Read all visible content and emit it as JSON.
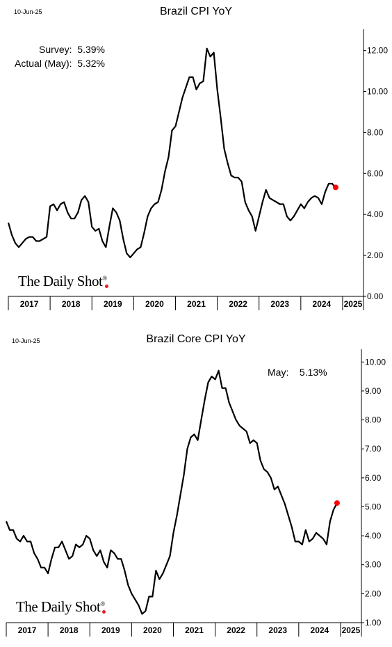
{
  "chart_data": [
    {
      "type": "line",
      "date_label": "10-Jun-25",
      "title": "Brazil CPI YoY",
      "annotations": [
        {
          "label": "Survey:",
          "value": "5.39%"
        },
        {
          "label": "Actual (May):",
          "value": "5.32%"
        }
      ],
      "logo": "The Daily Shot",
      "logo_mark": "®",
      "x_tick_labels": [
        "2017",
        "2018",
        "2019",
        "2020",
        "2021",
        "2022",
        "2023",
        "2024",
        "2025"
      ],
      "y_tick_labels": [
        "0.00",
        "2.00",
        "4.00",
        "6.00",
        "8.00",
        "10.00",
        "12.00"
      ],
      "ylim": [
        0,
        12.7
      ],
      "x_start": "2017-01",
      "series_color": "#000000",
      "marker_color": "#ff0000",
      "series": [
        {
          "values": [
            3.6,
            3.0,
            2.6,
            2.4,
            2.6,
            2.8,
            2.9,
            2.9,
            2.7,
            2.7,
            2.8,
            2.9,
            4.4,
            4.5,
            4.2,
            4.5,
            4.6,
            4.1,
            3.8,
            3.8,
            4.1,
            4.7,
            4.9,
            4.6,
            3.4,
            3.2,
            3.3,
            2.7,
            2.4,
            3.4,
            4.3,
            4.1,
            3.7,
            2.8,
            2.1,
            1.9,
            2.1,
            2.3,
            2.4,
            3.1,
            3.9,
            4.3,
            4.5,
            4.6,
            5.2,
            6.1,
            6.8,
            8.1,
            8.3,
            9.0,
            9.7,
            10.2,
            10.7,
            10.7,
            10.1,
            10.4,
            10.5,
            12.1,
            11.7,
            11.9,
            10.1,
            8.7,
            7.2,
            6.5,
            5.9,
            5.8,
            5.8,
            5.6,
            4.6,
            4.2,
            3.9,
            3.2,
            3.9,
            4.6,
            5.2,
            4.8,
            4.7,
            4.6,
            4.5,
            4.5,
            3.9,
            3.7,
            3.9,
            4.2,
            4.5,
            4.3,
            4.6,
            4.8,
            4.9,
            4.8,
            4.5,
            5.1,
            5.5,
            5.5,
            5.3
          ],
          "last_value": 5.32
        }
      ]
    },
    {
      "type": "line",
      "date_label": "10-Jun-25",
      "title": "Brazil Core CPI YoY",
      "annotations": [
        {
          "label": "May:",
          "value": "5.13%"
        }
      ],
      "logo": "The Daily Shot",
      "logo_mark": "®",
      "x_tick_labels": [
        "2017",
        "2018",
        "2019",
        "2020",
        "2021",
        "2022",
        "2023",
        "2024",
        "2025"
      ],
      "y_tick_labels": [
        "1.00",
        "2.00",
        "3.00",
        "4.00",
        "5.00",
        "6.00",
        "7.00",
        "8.00",
        "9.00",
        "10.00"
      ],
      "ylim": [
        1.0,
        10.2
      ],
      "x_start": "2017-01",
      "series_color": "#000000",
      "marker_color": "#ff0000",
      "series": [
        {
          "values": [
            4.5,
            4.2,
            4.2,
            3.9,
            3.8,
            4.0,
            3.8,
            3.8,
            3.4,
            3.2,
            2.9,
            2.9,
            2.7,
            3.2,
            3.6,
            3.6,
            3.8,
            3.5,
            3.2,
            3.3,
            3.7,
            3.6,
            3.7,
            4.0,
            3.9,
            3.5,
            3.3,
            3.5,
            3.1,
            2.9,
            3.5,
            3.4,
            3.2,
            3.2,
            2.8,
            2.3,
            2.0,
            1.8,
            1.6,
            1.3,
            1.4,
            1.9,
            1.9,
            2.8,
            2.5,
            2.7,
            3.0,
            3.3,
            4.1,
            4.7,
            5.4,
            6.1,
            7.0,
            7.4,
            7.5,
            7.3,
            8.0,
            8.7,
            9.3,
            9.5,
            9.4,
            9.7,
            9.1,
            9.1,
            8.6,
            8.3,
            8.0,
            7.8,
            7.7,
            7.6,
            7.2,
            7.3,
            7.2,
            6.6,
            6.3,
            6.2,
            6.0,
            5.6,
            5.7,
            5.4,
            5.1,
            4.7,
            4.3,
            3.8,
            3.8,
            3.7,
            4.2,
            3.8,
            3.9,
            4.1,
            4.0,
            3.9,
            3.7,
            4.5,
            4.9,
            5.13
          ],
          "last_value": 5.13
        }
      ]
    }
  ]
}
